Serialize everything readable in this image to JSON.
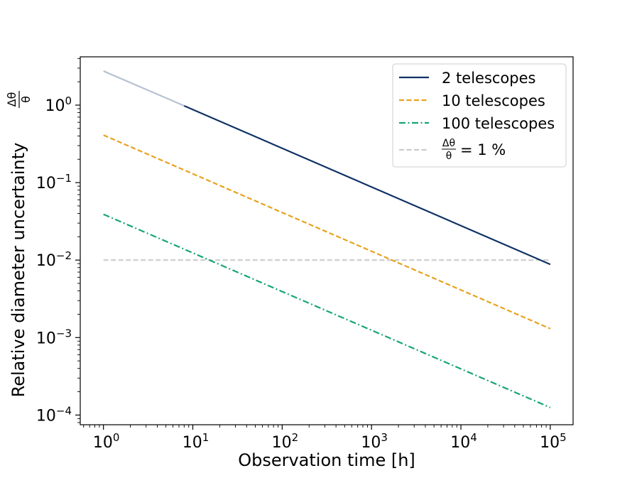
{
  "chart_data": {
    "type": "line",
    "x_scale": "log",
    "y_scale": "log",
    "xlabel": "Observation time [h]",
    "ylabel": "Relative diameter uncertainty",
    "ylabel_fraction": {
      "numerator": "Δθ",
      "denominator": "θ"
    },
    "xlim": [
      0.55,
      180000
    ],
    "ylim": [
      7.5e-05,
      4.2
    ],
    "x_ticks": [
      {
        "base": "10",
        "exp": "0",
        "value": 1
      },
      {
        "base": "10",
        "exp": "1",
        "value": 10
      },
      {
        "base": "10",
        "exp": "2",
        "value": 100
      },
      {
        "base": "10",
        "exp": "3",
        "value": 1000
      },
      {
        "base": "10",
        "exp": "4",
        "value": 10000
      },
      {
        "base": "10",
        "exp": "5",
        "value": 100000
      }
    ],
    "y_ticks": [
      {
        "base": "10",
        "exp": "0",
        "value": 1
      },
      {
        "base": "10",
        "exp": "−1",
        "value": 0.1
      },
      {
        "base": "10",
        "exp": "−2",
        "value": 0.01
      },
      {
        "base": "10",
        "exp": "−3",
        "value": 0.001
      },
      {
        "base": "10",
        "exp": "−4",
        "value": 0.0001
      }
    ],
    "series": [
      {
        "name": "2 telescopes",
        "style": "solid",
        "color": "#0f3266",
        "x": [
          1,
          8,
          100000
        ],
        "y": [
          2.75,
          0.98,
          0.0088
        ],
        "faded_until_x": 8,
        "faded_color": "#b8c2d2"
      },
      {
        "name": "10 telescopes",
        "style": "dashed",
        "color": "#e8a21e",
        "x": [
          1,
          100000
        ],
        "y": [
          0.41,
          0.0013
        ]
      },
      {
        "name": "100 telescopes",
        "style": "dashdot",
        "color": "#17a672",
        "x": [
          1,
          100000
        ],
        "y": [
          0.039,
          0.000125
        ]
      },
      {
        "name": "= 1 %",
        "legend_fraction": {
          "numerator": "Δθ",
          "denominator": "θ"
        },
        "style": "dashed",
        "color": "#cccccc",
        "x": [
          1,
          100000
        ],
        "y": [
          0.01,
          0.01
        ]
      }
    ],
    "legend_position": "top-right"
  }
}
